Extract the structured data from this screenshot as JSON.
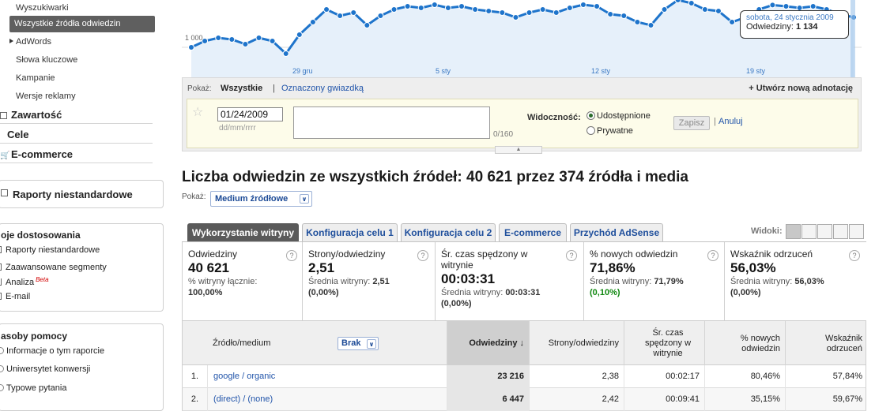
{
  "sidebar": {
    "items": [
      {
        "label": "Wyszukiwarki"
      },
      {
        "label": "Wszystkie źródła odwiedzin"
      },
      {
        "label": "AdWords"
      },
      {
        "label": "Słowa kluczowe"
      },
      {
        "label": "Kampanie"
      },
      {
        "label": "Wersje reklamy"
      }
    ],
    "sections": [
      {
        "label": "Zawartość"
      },
      {
        "label": "Cele"
      },
      {
        "label": "E-commerce"
      }
    ],
    "custom_reports": "Raporty niestandardowe",
    "my_custom": {
      "title": "oje dostosowania",
      "items": [
        "Raporty niestandardowe",
        "Zaawansowane segmenty",
        "Analiza",
        "E-mail"
      ],
      "beta": "Beta"
    },
    "help": {
      "title": "asoby pomocy",
      "items": [
        "Informacje o tym raporcie",
        "Uniwersytet konwersji",
        "Typowe pytania"
      ]
    }
  },
  "chart": {
    "y_label": "1 000",
    "x_labels": [
      "29 gru",
      "5 sty",
      "12 sty",
      "19 sty"
    ],
    "line_color": "#1e74cb",
    "fill_color": "#e6f0fa",
    "tooltip": {
      "date": "sobota, 24 stycznia 2009",
      "label": "Odwiedziny:",
      "value": "1 134"
    }
  },
  "chart_data": {
    "type": "area",
    "x_labels": [
      "29 gru",
      "5 sty",
      "12 sty",
      "19 sty"
    ],
    "y_tick": "1 000",
    "values": [
      1000,
      1020,
      1030,
      1025,
      1010,
      1030,
      1020,
      980,
      1040,
      1080,
      1120,
      1100,
      1110,
      1070,
      1100,
      1120,
      1130,
      1125,
      1135,
      1125,
      1130,
      1120,
      1115,
      1110,
      1095,
      1110,
      1120,
      1110,
      1125,
      1135,
      1130,
      1105,
      1100,
      1080,
      1070,
      1120,
      1150,
      1140,
      1120,
      1115,
      1080,
      1095,
      1120,
      1134,
      1130,
      1125,
      1130,
      1120,
      1105,
      1095
    ]
  },
  "annotations": {
    "show_label": "Pokaż:",
    "all": "Wszystkie",
    "sep": "|",
    "starred": "Oznaczony gwiazdką",
    "create": "+ Utwórz nową adnotację",
    "date_value": "01/24/2009",
    "date_hint": "dd/mm/rrrr",
    "counter": "0/160",
    "visibility_label": "Widoczność:",
    "shared": "Udostępnione",
    "private": "Prywatne",
    "save": "Zapisz",
    "cancel": "Anuluj"
  },
  "heading": "Liczba odwiedzin ze wszystkich źródeł: 40 621 przez 374 źródła i media",
  "show_label": "Pokaż:",
  "dimension_select": "Medium źródłowe",
  "tabs": [
    {
      "label": "Wykorzystanie witryny"
    },
    {
      "label": "Konfiguracja celu 1"
    },
    {
      "label": "Konfiguracja celu 2"
    },
    {
      "label": "E-commerce"
    },
    {
      "label": "Przychód AdSense"
    }
  ],
  "views_label": "Widoki:",
  "metrics": [
    {
      "title": "Odwiedziny",
      "value": "40 621",
      "sub1": "% witryny łącznie:",
      "sub2": "100,00%"
    },
    {
      "title": "Strony/odwiedziny",
      "value": "2,51",
      "sub1": "Średnia witryny: ",
      "sub1b": "2,51",
      "sub2": "(0,00%)"
    },
    {
      "title": "Śr. czas spędzony w witrynie",
      "value": "00:03:31",
      "sub1": "Średnia witryny: ",
      "sub1b": "00:03:31",
      "sub2": "(0,00%)"
    },
    {
      "title": "% nowych odwiedzin",
      "value": "71,86%",
      "sub1": "Średnia witryny: ",
      "sub1b": "71,79%",
      "sub2": "(0,10%)"
    },
    {
      "title": "Wskaźnik odrzuceń",
      "value": "56,03%",
      "sub1": "Średnia witryny: ",
      "sub1b": "56,03%",
      "sub2": "(0,00%)"
    }
  ],
  "table": {
    "headers": {
      "source": "Źródło/medium",
      "brak": "Brak",
      "visits": "Odwiedziny",
      "pages": "Strony/odwiedziny",
      "time": "Śr. czas spędzony w witrynie",
      "new": "% nowych odwiedzin",
      "bounce": "Wskaźnik odrzuceń"
    },
    "rows": [
      {
        "idx": "1.",
        "source": "google / organic",
        "visits": "23 216",
        "pages": "2,38",
        "time": "00:02:17",
        "new": "80,46%",
        "bounce": "57,84%"
      },
      {
        "idx": "2.",
        "source": "(direct) / (none)",
        "visits": "6 447",
        "pages": "2,42",
        "time": "00:09:41",
        "new": "35,15%",
        "bounce": "59,67%"
      }
    ]
  }
}
